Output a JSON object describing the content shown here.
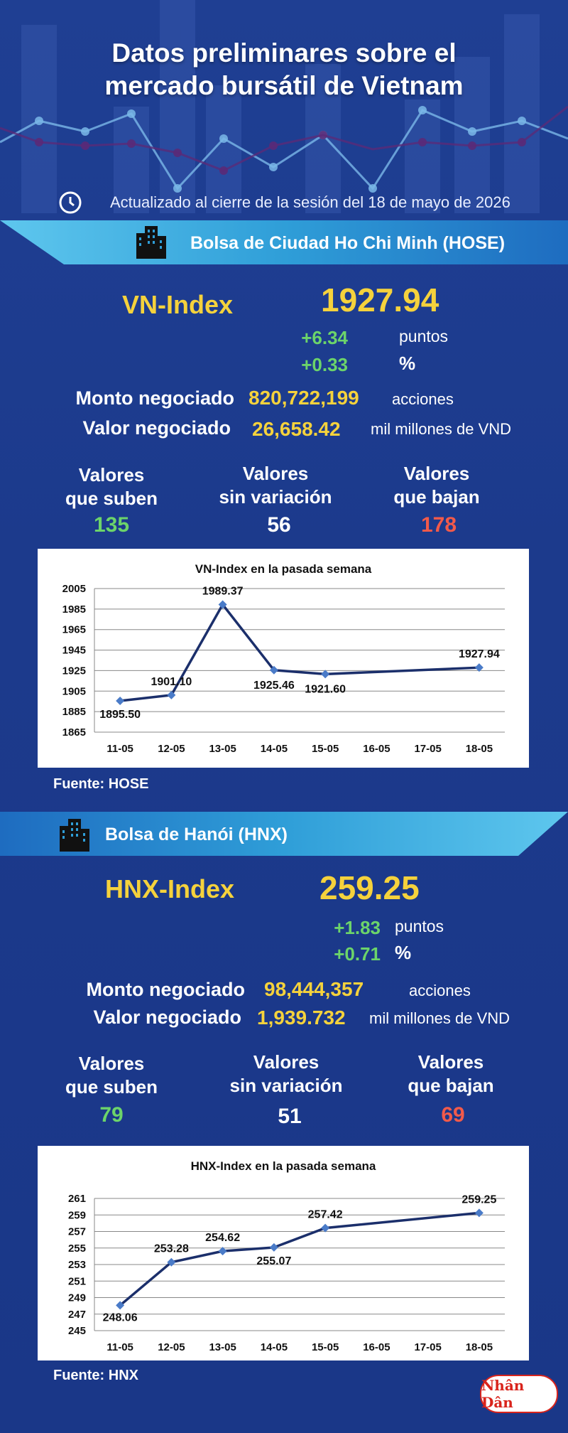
{
  "header": {
    "title_line1": "Datos preliminares sobre el",
    "title_line2": "mercado bursátil de Vietnam",
    "updated": "Actualizado al cierre de la sesión del 18 de mayo de 2026"
  },
  "hose": {
    "exchange": "Bolsa de Ciudad Ho Chi Minh (HOSE)",
    "index_name": "VN-Index",
    "index_value": "1927.94",
    "change_points": "+6.34",
    "points_unit": "puntos",
    "change_percent": "+0.33",
    "percent_unit": "%",
    "volume_label": "Monto negociado",
    "volume": "820,722,199",
    "volume_unit": "acciones",
    "value_label": "Valor negociado",
    "value": "26,658.42",
    "value_unit": "mil millones de VND",
    "up_label_1": "Valores",
    "up_label_2": "que suben",
    "up_count": "135",
    "flat_label_1": "Valores",
    "flat_label_2": "sin variación",
    "flat_count": "56",
    "down_label_1": "Valores",
    "down_label_2": "que bajan",
    "down_count": "178",
    "source": "Fuente: HOSE"
  },
  "hnx": {
    "exchange": "Bolsa de Hanói (HNX)",
    "index_name": "HNX-Index",
    "index_value": "259.25",
    "change_points": "+1.83",
    "points_unit": "puntos",
    "change_percent": "+0.71",
    "percent_unit": "%",
    "volume_label": "Monto negociado",
    "volume": "98,444,357",
    "volume_unit": "acciones",
    "value_label": "Valor negociado",
    "value": "1,939.732",
    "value_unit": "mil millones de VND",
    "up_label_1": "Valores",
    "up_label_2": "que suben",
    "up_count": "79",
    "flat_label_1": "Valores",
    "flat_label_2": "sin variación",
    "flat_count": "51",
    "down_label_1": "Valores",
    "down_label_2": "que bajan",
    "down_count": "69",
    "source": "Fuente:  HNX"
  },
  "logo_text": "Nhân Dân",
  "colors": {
    "background": "#1c3a8c",
    "accent_yellow": "#f5d23c",
    "up_green": "#6cd46a",
    "down_red": "#f25a4a",
    "line": "#1b2f6b",
    "marker": "#4a7bc8",
    "banner": "#2f9ed8"
  },
  "chart_data": [
    {
      "type": "line",
      "title": "VN-Index en la pasada semana",
      "categories": [
        "11-05",
        "12-05",
        "13-05",
        "14-05",
        "15-05",
        "16-05",
        "17-05",
        "18-05"
      ],
      "x_values": [
        0,
        1,
        2,
        3,
        4,
        7
      ],
      "values": [
        1895.5,
        1901.1,
        1989.37,
        1925.46,
        1921.6,
        1927.94
      ],
      "labels": [
        "1895.50",
        "1901.10",
        "1989.37",
        "1925.46",
        "1921.60",
        "1927.94"
      ],
      "ylim": [
        1865,
        2005
      ],
      "yticks": [
        "1865",
        "1885",
        "1905",
        "1925",
        "1945",
        "1965",
        "1985",
        "2005"
      ],
      "grid": true,
      "legend": "none"
    },
    {
      "type": "line",
      "title": "HNX-Index en la pasada semana",
      "categories": [
        "11-05",
        "12-05",
        "13-05",
        "14-05",
        "15-05",
        "16-05",
        "17-05",
        "18-05"
      ],
      "x_values": [
        0,
        1,
        2,
        3,
        4,
        7
      ],
      "values": [
        248.06,
        253.28,
        254.62,
        255.07,
        257.42,
        259.25
      ],
      "labels": [
        "248.06",
        "253.28",
        "254.62",
        "255.07",
        "257.42",
        "259.25"
      ],
      "ylim": [
        245,
        261
      ],
      "yticks": [
        "245",
        "247",
        "249",
        "251",
        "253",
        "255",
        "257",
        "259",
        "261"
      ],
      "grid": true,
      "legend": "none"
    }
  ]
}
